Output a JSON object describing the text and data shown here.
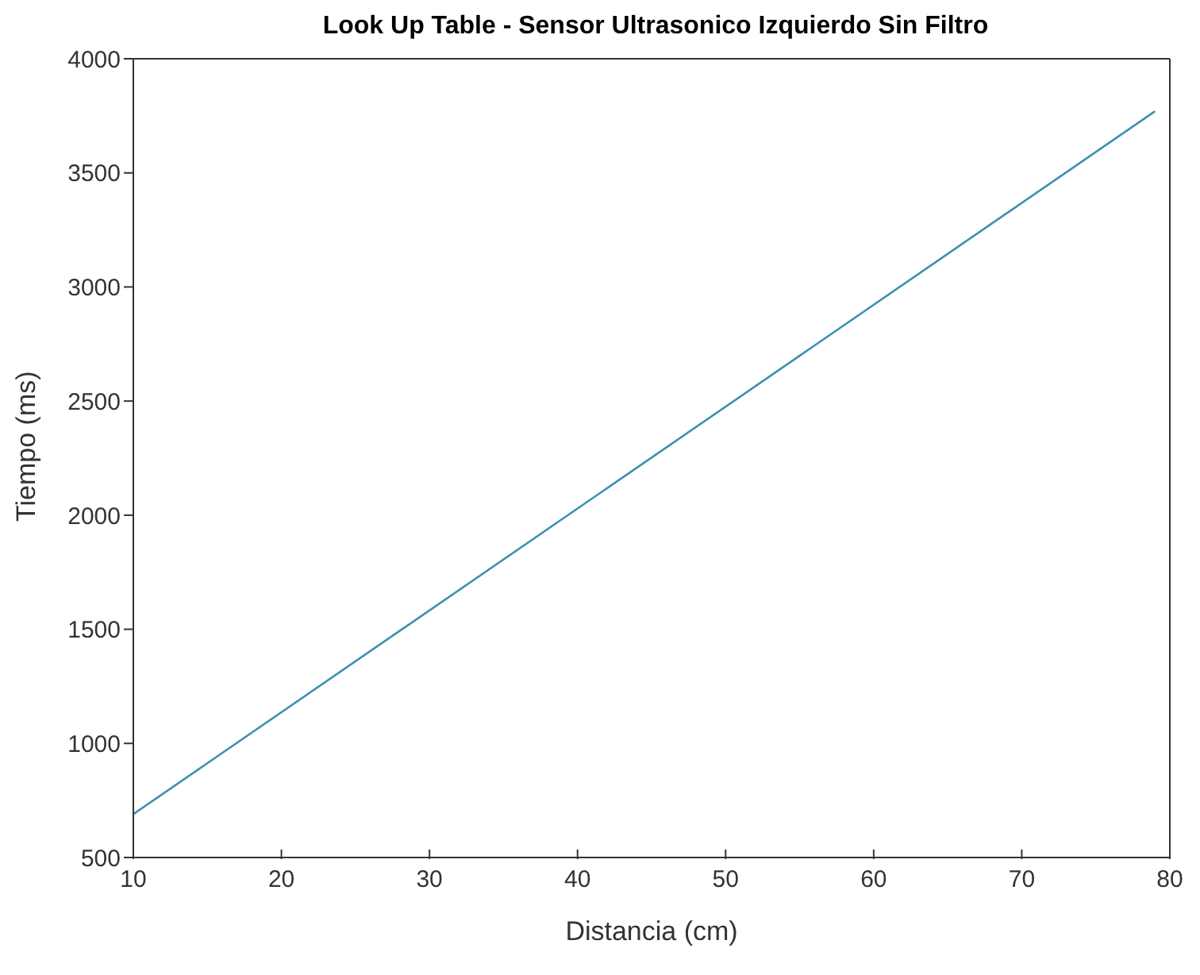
{
  "chart_data": {
    "type": "line",
    "title": "Look Up Table - Sensor Ultrasonico Izquierdo Sin Filtro",
    "xlabel": "Distancia (cm)",
    "ylabel": "Tiempo (ms)",
    "x": [
      10,
      79
    ],
    "series": [
      {
        "color": "#3d8fb5",
        "values": [
          690,
          3770
        ]
      }
    ],
    "xlim": [
      10,
      80
    ],
    "xticks": [
      10,
      20,
      30,
      40,
      50,
      60,
      70,
      80
    ],
    "ylim": [
      500,
      4000
    ],
    "yticks": [
      500,
      1000,
      1500,
      2000,
      2500,
      3000,
      3500,
      4000
    ],
    "grid": false,
    "legend": false,
    "marker": "none",
    "line_style": "solid"
  }
}
